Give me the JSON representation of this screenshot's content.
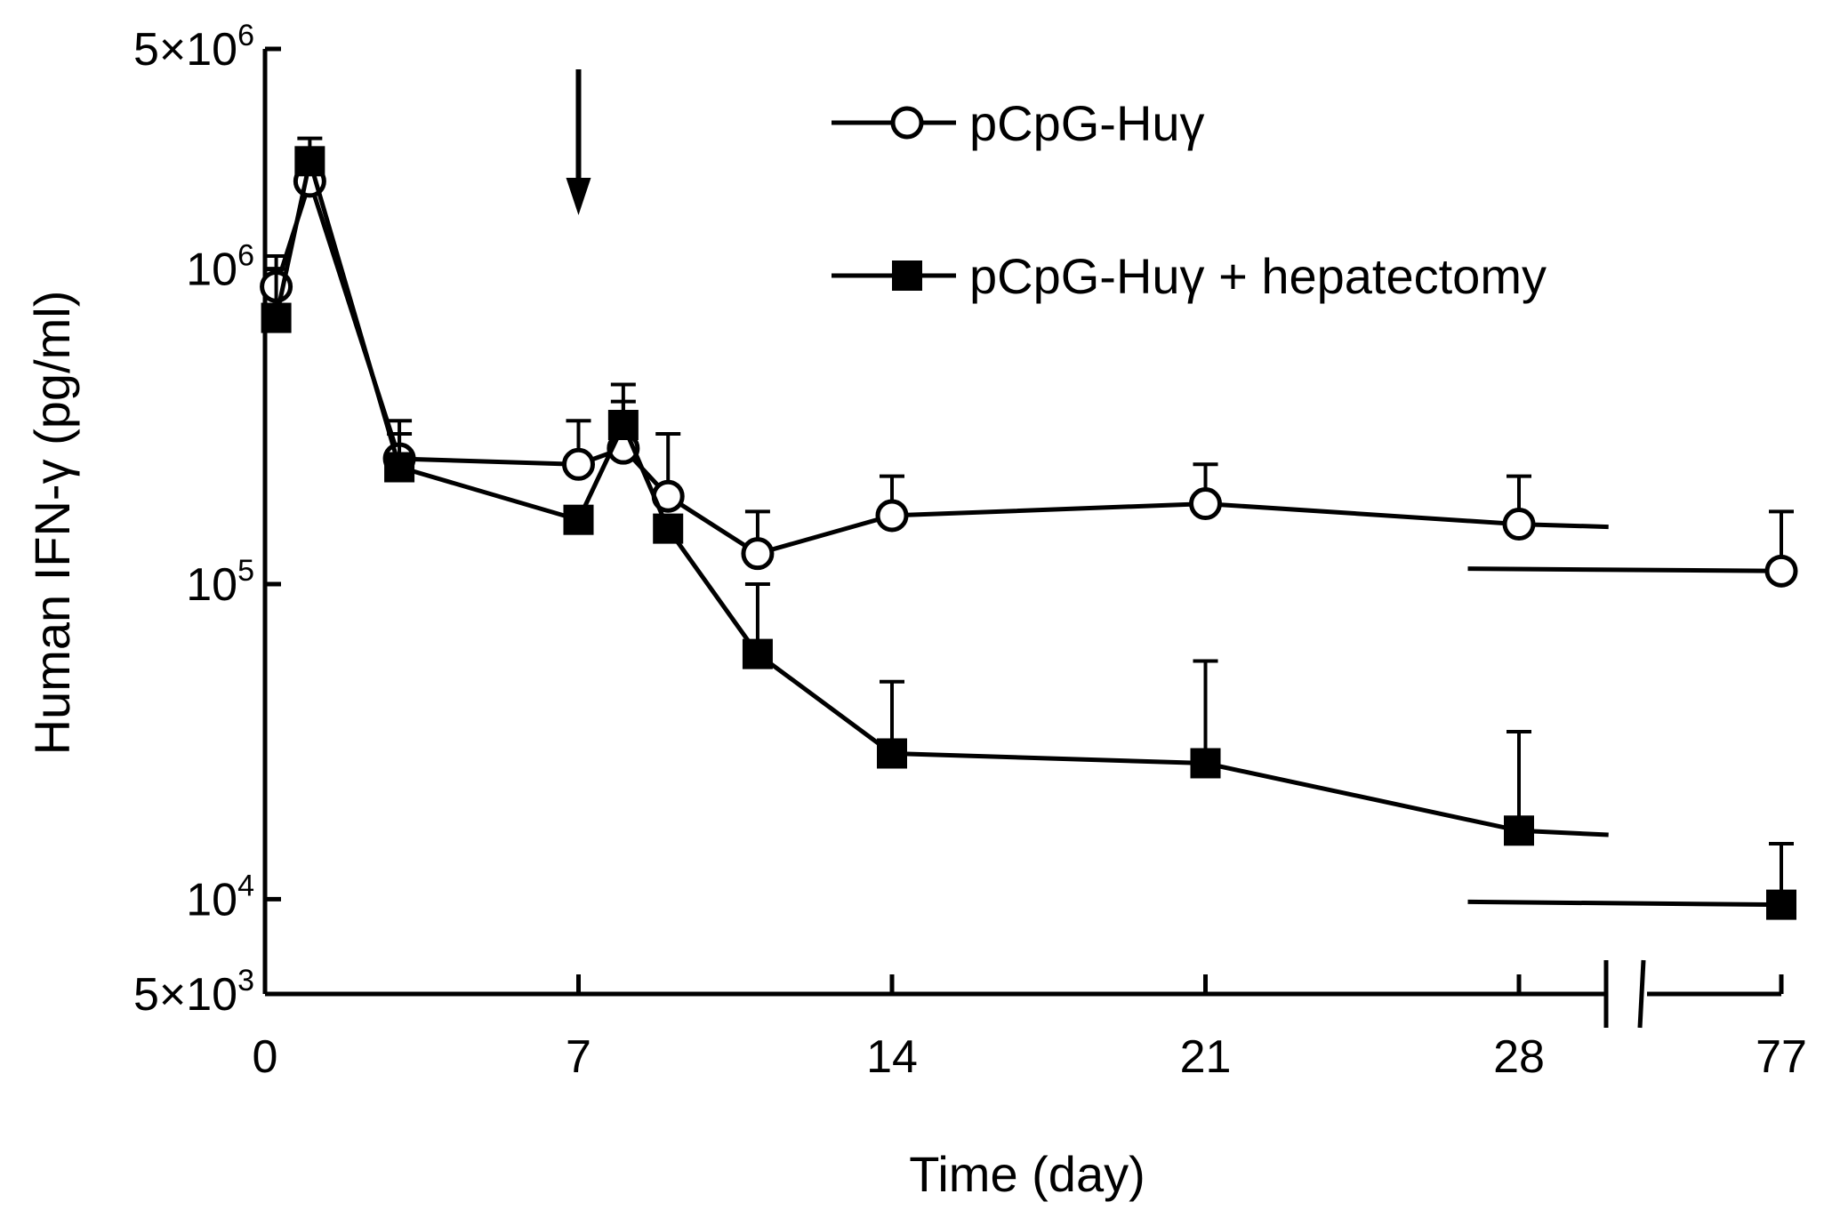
{
  "chart_data": {
    "type": "line",
    "title": "",
    "xlabel": "Time (day)",
    "ylabel": "Human IFN-γ (pg/ml)",
    "y_scale": "log",
    "ylim": [
      5000,
      5000000
    ],
    "xlim": [
      0,
      77
    ],
    "x_axis_break": {
      "after": 30,
      "resume": 77
    },
    "xticks": [
      {
        "value": 0,
        "label": "0"
      },
      {
        "value": 7,
        "label": "7"
      },
      {
        "value": 14,
        "label": "14"
      },
      {
        "value": 21,
        "label": "21"
      },
      {
        "value": 28,
        "label": "28"
      },
      {
        "value": 77,
        "label": "77"
      }
    ],
    "yticks": [
      {
        "value": 5000,
        "base": "5×10",
        "exp": "3"
      },
      {
        "value": 10000,
        "base": "10",
        "exp": "4"
      },
      {
        "value": 100000,
        "base": "10",
        "exp": "5"
      },
      {
        "value": 1000000,
        "base": "10",
        "exp": "6"
      },
      {
        "value": 5000000,
        "base": "5×10",
        "exp": "6"
      }
    ],
    "annotations": [
      {
        "type": "arrow",
        "x": 7,
        "direction": "down"
      }
    ],
    "legend_position": "top-right",
    "series": [
      {
        "name": "pCpG-Huγ",
        "marker": "open-circle",
        "segments": [
          [
            {
              "x": 0.25,
              "y": 880000,
              "err": 1100000
            },
            {
              "x": 1,
              "y": 1900000,
              "err": 2400000
            },
            {
              "x": 3,
              "y": 250000,
              "err": 330000
            },
            {
              "x": 7,
              "y": 240000,
              "err": 330000
            },
            {
              "x": 8,
              "y": 270000,
              "err": 380000
            },
            {
              "x": 9,
              "y": 190000,
              "err": 300000
            },
            {
              "x": 11,
              "y": 125000,
              "err": 170000
            },
            {
              "x": 14,
              "y": 165000,
              "err": 220000
            },
            {
              "x": 21,
              "y": 180000,
              "err": 240000
            },
            {
              "x": 28,
              "y": 155000,
              "err": 220000
            },
            {
              "x": 30,
              "y": 152000
            }
          ],
          [
            {
              "x": 70,
              "y": 112000
            },
            {
              "x": 77,
              "y": 110000,
              "err": 170000
            }
          ]
        ]
      },
      {
        "name": "pCpG-Huγ + hepatectomy",
        "marker": "filled-square",
        "segments": [
          [
            {
              "x": 0.25,
              "y": 700000,
              "err": 1000000
            },
            {
              "x": 1,
              "y": 2200000,
              "err": 2600000
            },
            {
              "x": 3,
              "y": 235000,
              "err": 300000
            },
            {
              "x": 7,
              "y": 160000
            },
            {
              "x": 8,
              "y": 320000,
              "err": 430000
            },
            {
              "x": 9,
              "y": 150000
            },
            {
              "x": 11,
              "y": 60000,
              "err": 100000
            },
            {
              "x": 14,
              "y": 29000,
              "err": 49000
            },
            {
              "x": 21,
              "y": 27000,
              "err": 57000
            },
            {
              "x": 28,
              "y": 16500,
              "err": 34000
            },
            {
              "x": 30,
              "y": 16000
            }
          ],
          [
            {
              "x": 70,
              "y": 9800
            },
            {
              "x": 77,
              "y": 9600,
              "err": 15000
            }
          ]
        ]
      }
    ]
  }
}
